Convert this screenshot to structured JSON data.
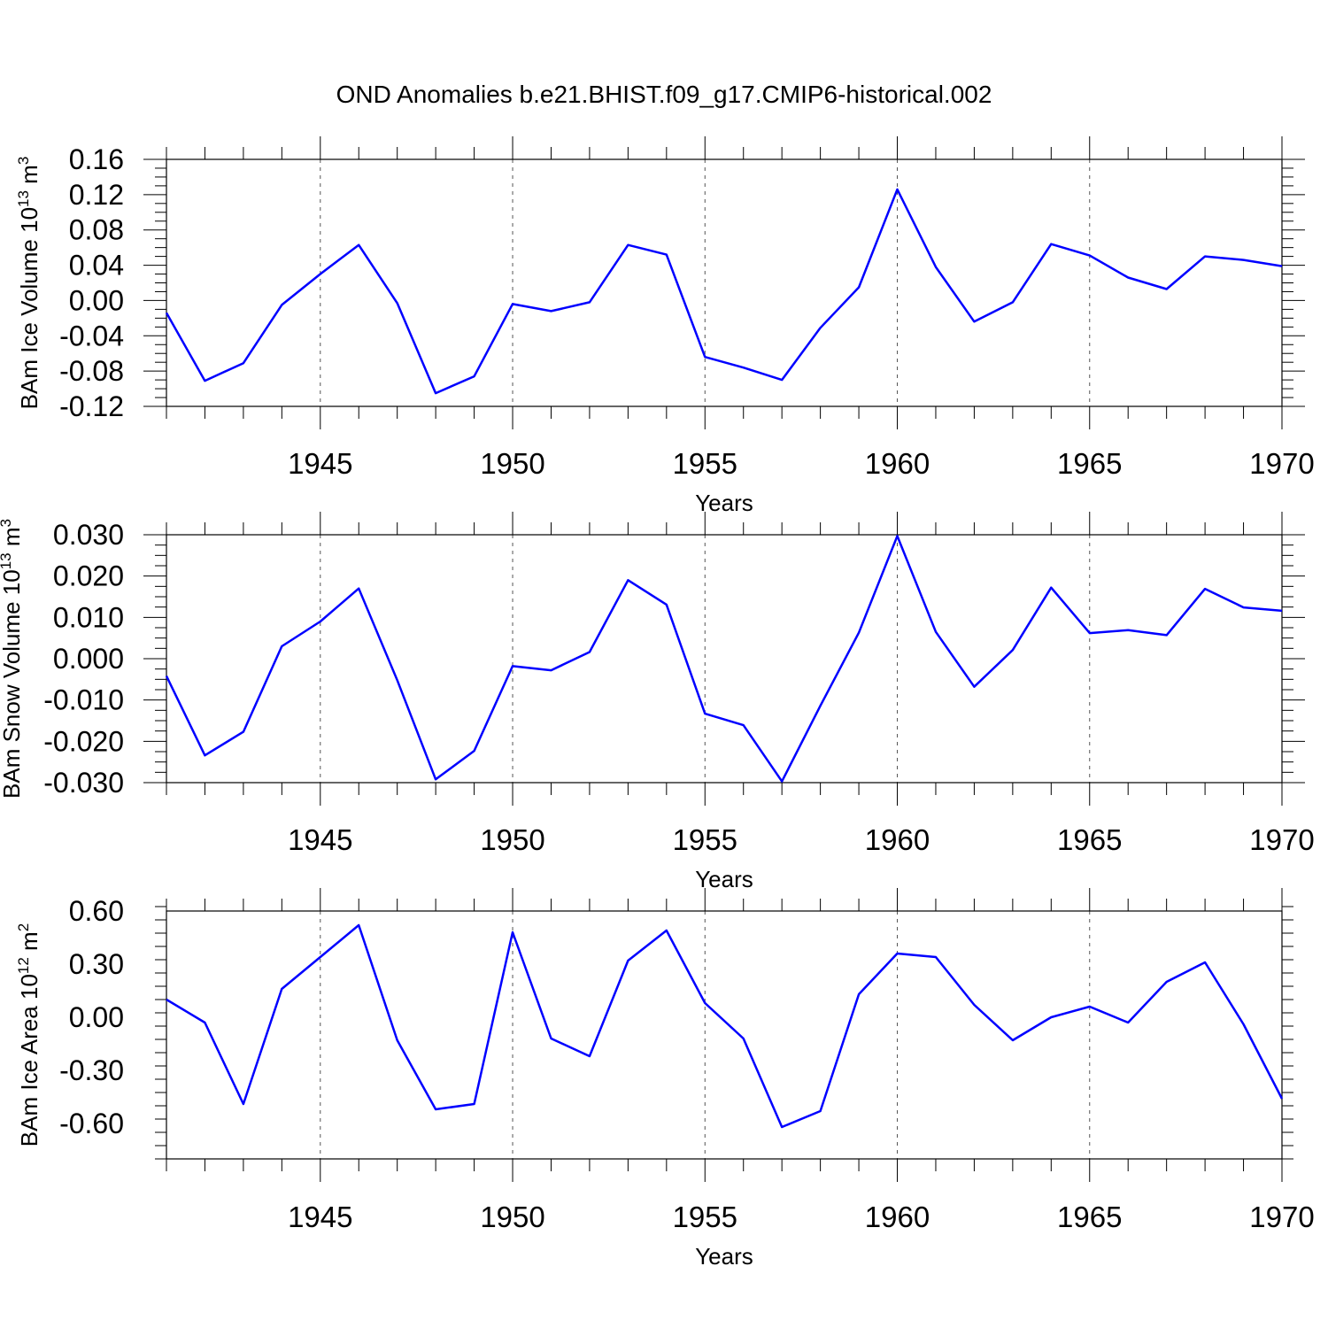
{
  "figure": {
    "title": "OND Anomalies b.e21.BHIST.f09_g17.CMIP6-historical.002"
  },
  "chart_data": [
    {
      "type": "line",
      "ylabel": "BAm Ice Volume 10",
      "ylabel_exp": "13",
      "ylabel_unit": " m",
      "ylabel_unit_exp": "3",
      "xlabel": "Years",
      "xlim": [
        1941,
        1970
      ],
      "ylim": [
        -0.12,
        0.16
      ],
      "yticks": [
        -0.12,
        -0.08,
        -0.04,
        0.0,
        0.04,
        0.08,
        0.12,
        0.16
      ],
      "ytick_labels": [
        "-0.12",
        "-0.08",
        "-0.04",
        "0.00",
        "0.04",
        "0.08",
        "0.12",
        "0.16"
      ],
      "xticks": [
        1945,
        1950,
        1955,
        1960,
        1965,
        1970
      ],
      "xtick_labels": [
        "1945",
        "1950",
        "1955",
        "1960",
        "1965",
        "1970"
      ],
      "grid_x": [
        1945,
        1950,
        1955,
        1960,
        1965
      ],
      "series": [
        {
          "name": "BAm Ice Volume",
          "color": "#0000ff",
          "x": [
            1941,
            1942,
            1943,
            1944,
            1945,
            1946,
            1947,
            1948,
            1949,
            1950,
            1951,
            1952,
            1953,
            1954,
            1955,
            1956,
            1957,
            1958,
            1959,
            1960,
            1961,
            1962,
            1963,
            1964,
            1965,
            1966,
            1967,
            1968,
            1969,
            1970
          ],
          "values": [
            -0.014,
            -0.091,
            -0.071,
            -0.005,
            0.03,
            0.063,
            -0.003,
            -0.105,
            -0.086,
            -0.004,
            -0.012,
            -0.002,
            0.063,
            0.052,
            -0.064,
            -0.076,
            -0.09,
            -0.031,
            0.015,
            0.126,
            0.038,
            -0.024,
            -0.002,
            0.064,
            0.051,
            0.026,
            0.013,
            0.05,
            0.046,
            0.039
          ]
        }
      ]
    },
    {
      "type": "line",
      "ylabel": "BAm Snow Volume 10",
      "ylabel_exp": "13",
      "ylabel_unit": " m",
      "ylabel_unit_exp": "3",
      "xlabel": "Years",
      "xlim": [
        1941,
        1970
      ],
      "ylim": [
        -0.03,
        0.03
      ],
      "yticks": [
        -0.03,
        -0.02,
        -0.01,
        0.0,
        0.01,
        0.02,
        0.03
      ],
      "ytick_labels": [
        "-0.030",
        "-0.020",
        "-0.010",
        "0.000",
        "0.010",
        "0.020",
        "0.030"
      ],
      "xticks": [
        1945,
        1950,
        1955,
        1960,
        1965,
        1970
      ],
      "xtick_labels": [
        "1945",
        "1950",
        "1955",
        "1960",
        "1965",
        "1970"
      ],
      "grid_x": [
        1945,
        1950,
        1955,
        1960,
        1965
      ],
      "series": [
        {
          "name": "BAm Snow Volume",
          "color": "#0000ff",
          "x": [
            1941,
            1942,
            1943,
            1944,
            1945,
            1946,
            1947,
            1948,
            1949,
            1950,
            1951,
            1952,
            1953,
            1954,
            1955,
            1956,
            1957,
            1958,
            1959,
            1960,
            1961,
            1962,
            1963,
            1964,
            1965,
            1966,
            1967,
            1968,
            1969,
            1970
          ],
          "values": [
            -0.0042,
            -0.0234,
            -0.0177,
            0.003,
            0.009,
            0.017,
            -0.0052,
            -0.0292,
            -0.0223,
            -0.0018,
            -0.0028,
            0.0016,
            0.019,
            0.0131,
            -0.0133,
            -0.0161,
            -0.0297,
            -0.0114,
            0.0063,
            0.0297,
            0.0065,
            -0.0068,
            0.0021,
            0.0172,
            0.0062,
            0.0069,
            0.0057,
            0.0169,
            0.0124,
            0.0116
          ]
        }
      ]
    },
    {
      "type": "line",
      "ylabel": "BAm Ice Area 10",
      "ylabel_exp": "12",
      "ylabel_unit": " m",
      "ylabel_unit_exp": "2",
      "xlabel": "Years",
      "xlim": [
        1941,
        1970
      ],
      "ylim": [
        -0.8,
        0.6
      ],
      "yticks": [
        -0.6,
        -0.3,
        0.0,
        0.3,
        0.6
      ],
      "ytick_labels": [
        "-0.60",
        "-0.30",
        "0.00",
        "0.30",
        "0.60"
      ],
      "xticks": [
        1945,
        1950,
        1955,
        1960,
        1965,
        1970
      ],
      "xtick_labels": [
        "1945",
        "1950",
        "1955",
        "1960",
        "1965",
        "1970"
      ],
      "grid_x": [
        1945,
        1950,
        1955,
        1960,
        1965
      ],
      "series": [
        {
          "name": "BAm Ice Area",
          "color": "#0000ff",
          "x": [
            1941,
            1942,
            1943,
            1944,
            1945,
            1946,
            1947,
            1948,
            1949,
            1950,
            1951,
            1952,
            1953,
            1954,
            1955,
            1956,
            1957,
            1958,
            1959,
            1960,
            1961,
            1962,
            1963,
            1964,
            1965,
            1966,
            1967,
            1968,
            1969,
            1970
          ],
          "values": [
            0.1,
            -0.03,
            -0.49,
            0.16,
            0.34,
            0.52,
            -0.13,
            -0.52,
            -0.49,
            0.48,
            -0.12,
            -0.22,
            0.32,
            0.49,
            0.08,
            -0.12,
            -0.62,
            -0.53,
            0.13,
            0.36,
            0.34,
            0.07,
            -0.13,
            0.0,
            0.06,
            -0.03,
            0.2,
            0.31,
            -0.04,
            -0.46
          ]
        }
      ]
    }
  ]
}
